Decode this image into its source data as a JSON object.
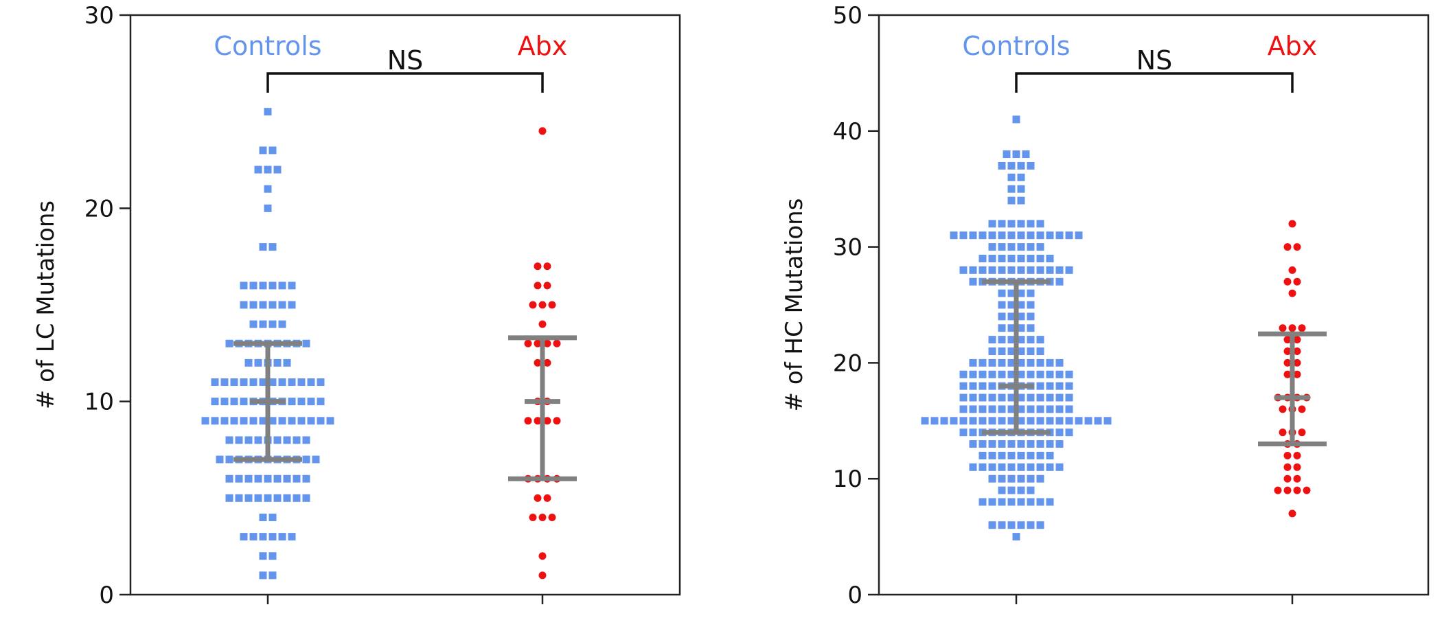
{
  "colors": {
    "controls": "#6495ED",
    "abx": "#EE1111",
    "summary": "#808080",
    "axis": "#222222",
    "bracket": "#111111"
  },
  "chart_data": [
    {
      "type": "scatter",
      "subtype": "dot-plot",
      "ylabel": "# of LC Mutations",
      "ylim": [
        0,
        30
      ],
      "yticks": [
        0,
        10,
        20,
        30
      ],
      "categories": [
        "Controls",
        "Abx"
      ],
      "comparison": {
        "between": [
          "Controls",
          "Abx"
        ],
        "label": "NS"
      },
      "series": [
        {
          "name": "Controls",
          "marker": "square",
          "counts": {
            "1": 2,
            "2": 2,
            "3": 6,
            "4": 2,
            "5": 9,
            "6": 9,
            "7": 11,
            "8": 9,
            "9": 14,
            "10": 12,
            "11": 12,
            "12": 5,
            "13": 9,
            "14": 4,
            "15": 6,
            "16": 6,
            "18": 2,
            "20": 1,
            "21": 1,
            "22": 3,
            "23": 2,
            "25": 1
          },
          "median": 10,
          "q1": 7,
          "q3": 13
        },
        {
          "name": "Abx",
          "marker": "circle",
          "counts": {
            "1": 1,
            "2": 1,
            "4": 3,
            "5": 2,
            "6": 4,
            "9": 4,
            "10": 2,
            "12": 2,
            "13": 4,
            "14": 1,
            "15": 3,
            "16": 2,
            "17": 2,
            "24": 1
          },
          "median": 10,
          "q1": 6,
          "q3": 13.3
        }
      ]
    },
    {
      "type": "scatter",
      "subtype": "dot-plot",
      "ylabel": "# of HC Mutations",
      "ylim": [
        0,
        50
      ],
      "yticks": [
        0,
        10,
        20,
        30,
        40,
        50
      ],
      "categories": [
        "Controls",
        "Abx"
      ],
      "comparison": {
        "between": [
          "Controls",
          "Abx"
        ],
        "label": "NS"
      },
      "series": [
        {
          "name": "Controls",
          "marker": "square",
          "counts": {
            "5": 1,
            "6": 6,
            "8": 8,
            "9": 4,
            "10": 6,
            "11": 10,
            "12": 8,
            "13": 10,
            "14": 12,
            "15": 20,
            "16": 12,
            "17": 12,
            "18": 12,
            "19": 12,
            "20": 10,
            "21": 6,
            "22": 6,
            "23": 4,
            "24": 4,
            "25": 4,
            "26": 4,
            "27": 10,
            "28": 12,
            "29": 8,
            "30": 6,
            "31": 14,
            "32": 6,
            "34": 2,
            "35": 2,
            "36": 2,
            "37": 4,
            "38": 3,
            "41": 1
          },
          "median": 18,
          "q1": 14,
          "q3": 27
        },
        {
          "name": "Abx",
          "marker": "circle",
          "counts": {
            "7": 1,
            "9": 4,
            "10": 2,
            "11": 2,
            "12": 2,
            "13": 2,
            "14": 3,
            "16": 3,
            "17": 4,
            "19": 2,
            "20": 2,
            "21": 2,
            "22": 2,
            "23": 3,
            "26": 1,
            "27": 2,
            "28": 1,
            "30": 2,
            "32": 1
          },
          "median": 17,
          "q1": 13,
          "q3": 22.5
        }
      ]
    }
  ]
}
